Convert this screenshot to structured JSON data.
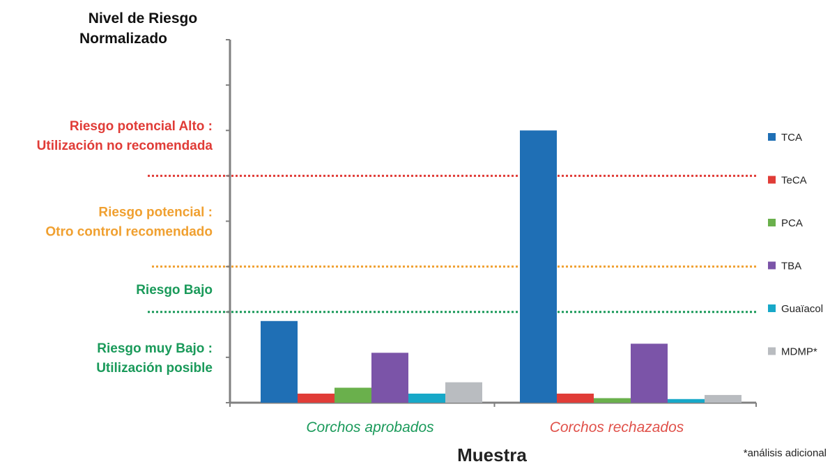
{
  "chart_data": {
    "type": "bar",
    "ylabel_lines": [
      "Nivel de Riesgo",
      "Normalizado"
    ],
    "xlabel": "Muestra",
    "categories": [
      "Corchos aprobados",
      "Corchos rechazados"
    ],
    "category_colors": [
      "#1a9a5a",
      "#e0514a"
    ],
    "ylim": [
      0,
      8
    ],
    "y_ticks": [
      0,
      1,
      2,
      3,
      4,
      5,
      6,
      7,
      8
    ],
    "series": [
      {
        "name": "TCA",
        "color": "#1f6fb5",
        "values": [
          1.8,
          6.0
        ]
      },
      {
        "name": "TeCA",
        "color": "#e03c37",
        "values": [
          0.2,
          0.2
        ]
      },
      {
        "name": "PCA",
        "color": "#6ab04c",
        "values": [
          0.33,
          0.1
        ]
      },
      {
        "name": "TBA",
        "color": "#7b54a8",
        "values": [
          1.1,
          1.3
        ]
      },
      {
        "name": "Guaïacol",
        "color": "#17a8c8",
        "values": [
          0.2,
          0.08
        ]
      },
      {
        "name": "MDMP*",
        "color": "#b9bcc0",
        "values": [
          0.45,
          0.17
        ]
      }
    ],
    "threshold_lines": [
      {
        "value": 5.0,
        "color": "#e03c37",
        "style": "dotted"
      },
      {
        "value": 3.0,
        "color": "#f0a030",
        "style": "dotted"
      },
      {
        "value": 2.0,
        "color": "#1a9a5a",
        "style": "dotted"
      }
    ],
    "zones": [
      {
        "lines": [
          "Riesgo potencial Alto :",
          "Utilización no recomendada"
        ],
        "color": "#e03c37",
        "y_center": 5.9
      },
      {
        "lines": [
          "Riesgo potencial :",
          "Otro control recomendado"
        ],
        "color": "#f0a030",
        "y_center": 4.0
      },
      {
        "lines": [
          "Riesgo Bajo"
        ],
        "color": "#1a9a5a",
        "y_center": 2.5
      },
      {
        "lines": [
          "Riesgo muy Bajo :",
          "Utilización posible"
        ],
        "color": "#1a9a5a",
        "y_center": 1.0
      }
    ],
    "legend_position": "right",
    "grid": false
  },
  "footnote": "*análisis adicional"
}
